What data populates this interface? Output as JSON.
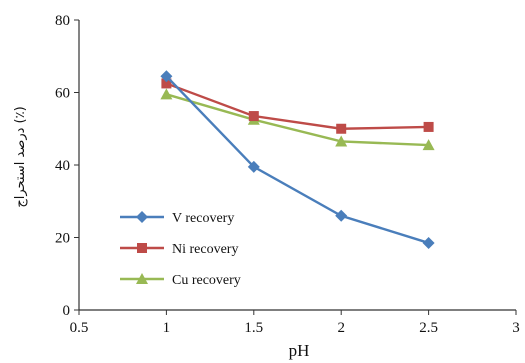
{
  "chart_data": {
    "type": "line",
    "xlabel": "pH",
    "ylabel": "درصد استحراج (٪)",
    "xlim": [
      0.5,
      3
    ],
    "ylim": [
      0,
      80
    ],
    "xticks": [
      0.5,
      1,
      1.5,
      2,
      2.5,
      3
    ],
    "yticks": [
      0,
      20,
      40,
      60,
      80
    ],
    "xtick_labels": [
      "0.5",
      "1",
      "1.5",
      "2",
      "2.5",
      "3"
    ],
    "ytick_labels": [
      "0",
      "20",
      "40",
      "60",
      "80"
    ],
    "grid": false,
    "legend_position": "bottom-left",
    "x": [
      1,
      1.5,
      2,
      2.5
    ],
    "series": [
      {
        "name": "V recovery",
        "values": [
          64.5,
          39.5,
          26,
          18.5
        ],
        "color": "#4a7ebb",
        "marker": "diamond"
      },
      {
        "name": "Ni recovery",
        "values": [
          62.5,
          53.5,
          50,
          50.5
        ],
        "color": "#be4b48",
        "marker": "square"
      },
      {
        "name": "Cu recovery",
        "values": [
          59.5,
          52.5,
          46.5,
          45.5
        ],
        "color": "#98b954",
        "marker": "triangle"
      }
    ]
  }
}
